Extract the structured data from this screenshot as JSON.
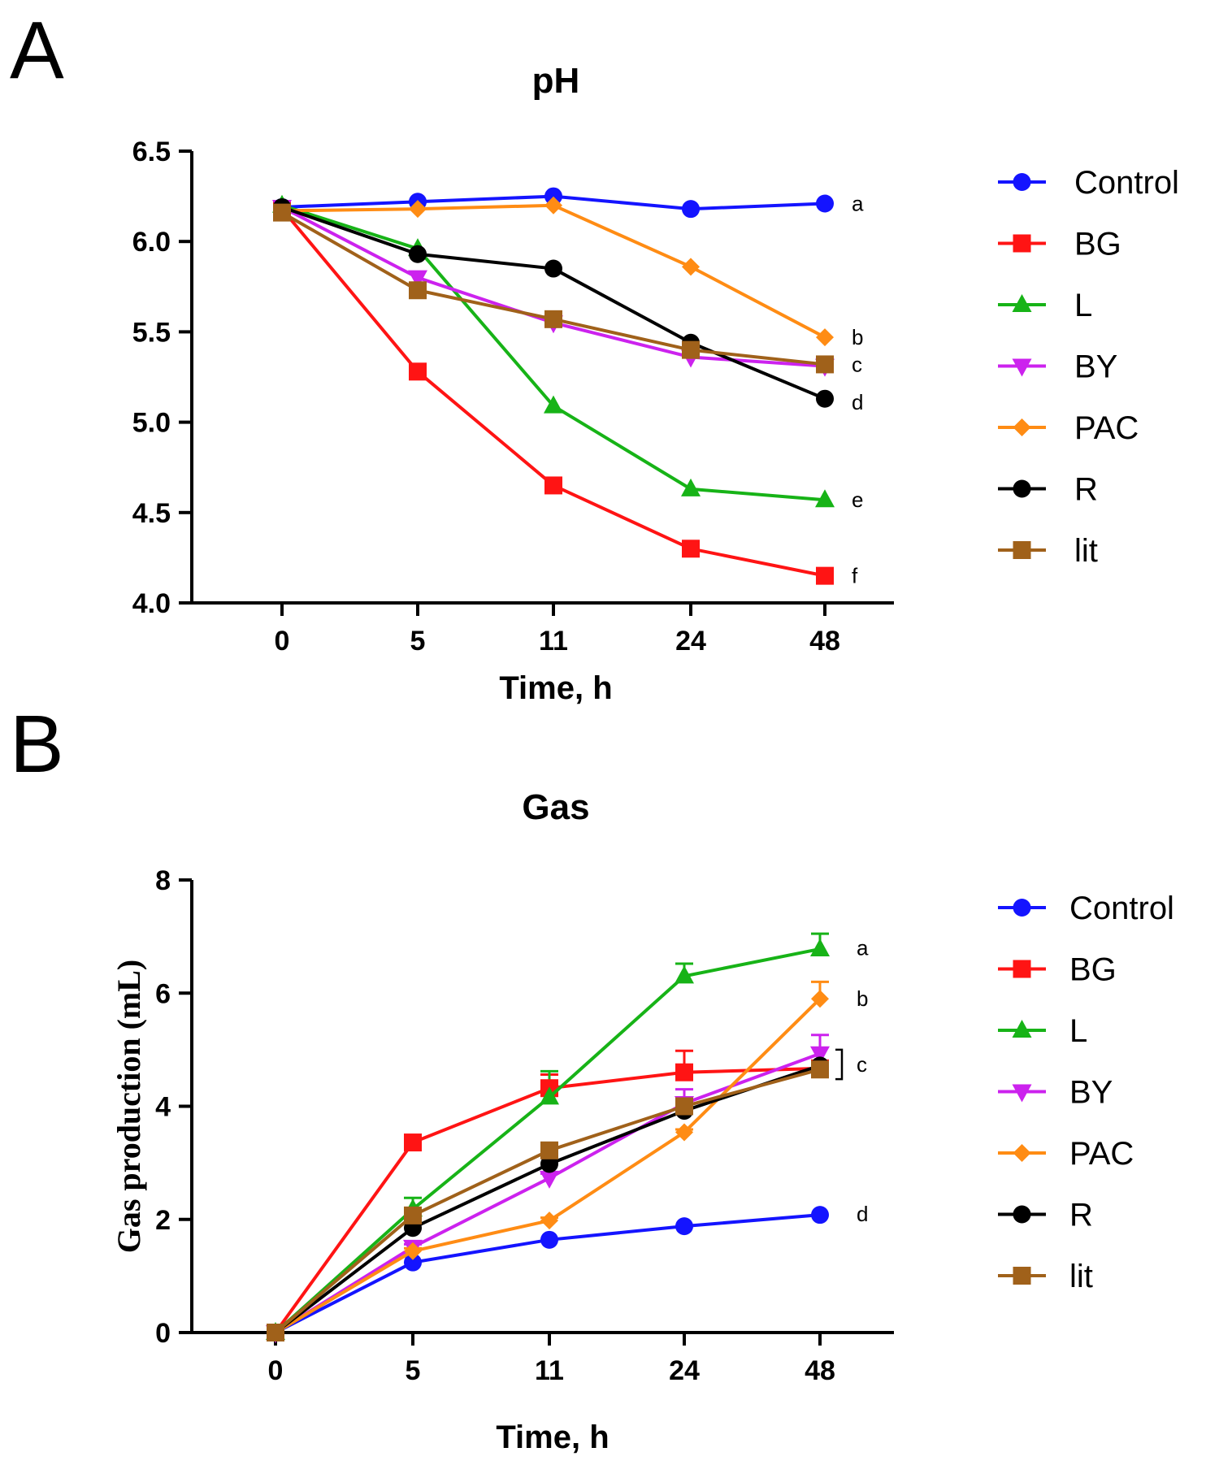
{
  "figure": {
    "panels": [
      "A",
      "B"
    ]
  },
  "chart_data": [
    {
      "type": "line",
      "panel": "A",
      "title": "pH",
      "xlabel": "Time, h",
      "ylabel": "",
      "categories": [
        "0",
        "5",
        "11",
        "24",
        "48"
      ],
      "ylim": [
        4.0,
        6.5
      ],
      "yticks": [
        "4.0",
        "4.5",
        "5.0",
        "5.5",
        "6.0",
        "6.5"
      ],
      "yticks_values": [
        4.0,
        4.5,
        5.0,
        5.5,
        6.0,
        6.5
      ],
      "legend_position": "right",
      "series": [
        {
          "name": "Control",
          "color": "#1414ff",
          "marker": "circle",
          "values": [
            6.19,
            6.22,
            6.25,
            6.18,
            6.21
          ]
        },
        {
          "name": "BG",
          "color": "#ff1414",
          "marker": "square",
          "values": [
            6.18,
            5.28,
            4.65,
            4.3,
            4.15
          ]
        },
        {
          "name": "L",
          "color": "#17b317",
          "marker": "triangle",
          "values": [
            6.2,
            5.96,
            5.09,
            4.63,
            4.57
          ]
        },
        {
          "name": "BY",
          "color": "#cc22ee",
          "marker": "triangle-down",
          "values": [
            6.19,
            5.8,
            5.55,
            5.36,
            5.31
          ]
        },
        {
          "name": "PAC",
          "color": "#ff8c14",
          "marker": "diamond",
          "values": [
            6.17,
            6.18,
            6.2,
            5.86,
            5.47
          ]
        },
        {
          "name": "R",
          "color": "#000000",
          "marker": "circle",
          "values": [
            6.19,
            5.93,
            5.85,
            5.44,
            5.13
          ]
        },
        {
          "name": "lit",
          "color": "#a0611a",
          "marker": "square",
          "values": [
            6.16,
            5.73,
            5.57,
            5.4,
            5.32
          ]
        }
      ],
      "annotations": [
        {
          "text": "a",
          "y": 6.21
        },
        {
          "text": "b",
          "y": 5.47
        },
        {
          "text": "c",
          "y": 5.32
        },
        {
          "text": "d",
          "y": 5.11
        },
        {
          "text": "e",
          "y": 4.57
        },
        {
          "text": "f",
          "y": 4.15
        }
      ]
    },
    {
      "type": "line",
      "panel": "B",
      "title": "Gas",
      "xlabel": "Time, h",
      "ylabel": "Gas production (mL)",
      "categories": [
        "0",
        "5",
        "11",
        "24",
        "48"
      ],
      "ylim": [
        0,
        8
      ],
      "yticks": [
        "0",
        "2",
        "4",
        "6",
        "8"
      ],
      "yticks_values": [
        0,
        2,
        4,
        6,
        8
      ],
      "legend_position": "right",
      "series": [
        {
          "name": "Control",
          "color": "#1414ff",
          "marker": "circle",
          "values": [
            0,
            1.24,
            1.64,
            1.88,
            2.08
          ]
        },
        {
          "name": "BG",
          "color": "#ff1414",
          "marker": "square",
          "values": [
            0,
            3.36,
            4.32,
            4.6,
            4.67
          ],
          "errors": [
            0,
            0.05,
            0.24,
            0.38,
            0.1
          ]
        },
        {
          "name": "L",
          "color": "#17b317",
          "marker": "triangle",
          "values": [
            0,
            2.18,
            4.16,
            6.3,
            6.78
          ],
          "errors": [
            0,
            0.2,
            0.46,
            0.22,
            0.27
          ]
        },
        {
          "name": "BY",
          "color": "#cc22ee",
          "marker": "triangle-down",
          "values": [
            0,
            1.51,
            2.73,
            4.05,
            4.93
          ],
          "errors": [
            0,
            0.05,
            0.08,
            0.25,
            0.33
          ]
        },
        {
          "name": "PAC",
          "color": "#ff8c14",
          "marker": "diamond",
          "values": [
            0,
            1.44,
            1.98,
            3.54,
            5.9
          ],
          "errors": [
            0,
            0.05,
            0.05,
            0.05,
            0.3
          ]
        },
        {
          "name": "R",
          "color": "#000000",
          "marker": "circle",
          "values": [
            0,
            1.85,
            2.98,
            3.92,
            4.72
          ]
        },
        {
          "name": "lit",
          "color": "#a0611a",
          "marker": "square",
          "values": [
            0,
            2.07,
            3.22,
            4.0,
            4.65
          ]
        }
      ],
      "annotations": [
        {
          "text": "a",
          "y": 6.8
        },
        {
          "text": "b",
          "y": 5.9
        },
        {
          "text": "c",
          "y": 4.74,
          "bracket": [
            5.0,
            4.48
          ]
        },
        {
          "text": "d",
          "y": 2.1
        }
      ]
    }
  ]
}
